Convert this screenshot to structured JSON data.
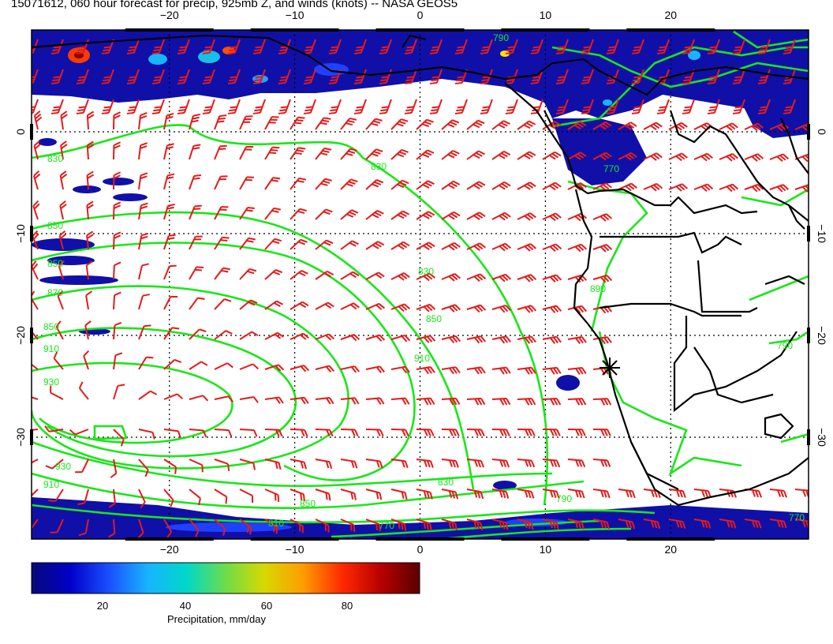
{
  "title": "15071612, 060 hour forecast for precip, 925mb Z, and winds (knots) -- NASA GEOS5",
  "map": {
    "lon_range": [
      -31,
      31
    ],
    "lat_range": [
      -40,
      10
    ],
    "lon_ticks": [
      -20,
      -10,
      0,
      10,
      20
    ],
    "lat_ticks": [
      0,
      -10,
      -20,
      -30
    ],
    "lon_tick_labels": [
      "−20",
      "−10",
      "0",
      "10",
      "20"
    ],
    "lat_tick_labels": [
      "0",
      "−10",
      "−20",
      "−30"
    ],
    "gridlines": "dotted",
    "contour_color": "#19e619",
    "barb_color": "#e51a1a",
    "coast_color": "#000000",
    "marker": {
      "symbol": "asterisk",
      "lon": 14.5,
      "lat": -23
    }
  },
  "contour_labels": [
    "790",
    "810",
    "830",
    "850",
    "870",
    "890",
    "910",
    "930",
    "770"
  ],
  "colorbar": {
    "ticks": [
      "20",
      "40",
      "60",
      "80"
    ],
    "label": "Precipitation, mm/day",
    "range": [
      0,
      100
    ],
    "colors": [
      "#08087a",
      "#0000c8",
      "#1a50ff",
      "#18b4ff",
      "#00d8c8",
      "#6edc4a",
      "#d8d800",
      "#ff9c00",
      "#ff2a00",
      "#b80000",
      "#5a0000"
    ]
  }
}
